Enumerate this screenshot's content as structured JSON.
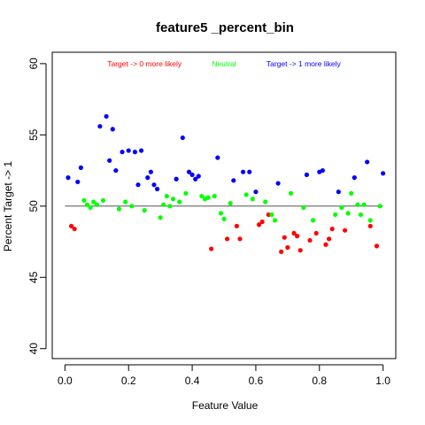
{
  "chart_data": {
    "type": "scatter",
    "title": "feature5 _percent_bin",
    "xlabel": "Feature Value",
    "ylabel": "Percent Target -> 1",
    "xlim": [
      -0.04,
      1.04
    ],
    "ylim": [
      39.3,
      60.8
    ],
    "x_ticks": [
      0,
      0.2,
      0.4,
      0.6,
      0.8,
      1
    ],
    "x_tick_labels": [
      "0.0",
      "0.2",
      "0.4",
      "0.6",
      "0.8",
      "1.0"
    ],
    "y_ticks": [
      40,
      45,
      50,
      55,
      60
    ],
    "y_tick_labels": [
      "40",
      "45",
      "50",
      "55",
      "60"
    ],
    "reference_line": 50,
    "reference_line_color": "#555555",
    "annotations": [
      {
        "text": "Target -> 0 more likely",
        "color": "#ff0000",
        "x": 0.25,
        "y": 60.0
      },
      {
        "text": "Neutral",
        "color": "#00ff00",
        "x": 0.5,
        "y": 60.0
      },
      {
        "text": "Target -> 1 more likely",
        "color": "#0000ff",
        "x": 0.75,
        "y": 60.0
      }
    ],
    "series": [
      {
        "color": "#ff0000",
        "points": [
          [
            0.02,
            48.6
          ],
          [
            0.03,
            48.4
          ],
          [
            0.46,
            47.0
          ],
          [
            0.51,
            47.7
          ],
          [
            0.54,
            48.6
          ],
          [
            0.55,
            47.7
          ],
          [
            0.61,
            48.7
          ],
          [
            0.62,
            48.9
          ],
          [
            0.64,
            49.4
          ],
          [
            0.68,
            46.8
          ],
          [
            0.69,
            47.8
          ],
          [
            0.7,
            47.1
          ],
          [
            0.72,
            48.1
          ],
          [
            0.73,
            47.9
          ],
          [
            0.74,
            46.9
          ],
          [
            0.77,
            47.6
          ],
          [
            0.79,
            48.1
          ],
          [
            0.82,
            47.3
          ],
          [
            0.83,
            47.7
          ],
          [
            0.84,
            48.4
          ],
          [
            0.88,
            48.3
          ],
          [
            0.96,
            48.6
          ],
          [
            0.98,
            47.2
          ]
        ]
      },
      {
        "color": "#00ff00",
        "points": [
          [
            0.06,
            50.4
          ],
          [
            0.07,
            50.1
          ],
          [
            0.08,
            49.9
          ],
          [
            0.09,
            50.3
          ],
          [
            0.1,
            50.1
          ],
          [
            0.12,
            50.4
          ],
          [
            0.17,
            49.8
          ],
          [
            0.19,
            50.3
          ],
          [
            0.21,
            50.0
          ],
          [
            0.25,
            49.7
          ],
          [
            0.3,
            49.2
          ],
          [
            0.31,
            50.1
          ],
          [
            0.32,
            50.7
          ],
          [
            0.33,
            50.0
          ],
          [
            0.34,
            50.5
          ],
          [
            0.36,
            50.3
          ],
          [
            0.38,
            50.9
          ],
          [
            0.43,
            50.7
          ],
          [
            0.44,
            50.5
          ],
          [
            0.45,
            50.6
          ],
          [
            0.47,
            50.7
          ],
          [
            0.49,
            49.5
          ],
          [
            0.5,
            49.1
          ],
          [
            0.52,
            50.2
          ],
          [
            0.57,
            50.8
          ],
          [
            0.59,
            50.5
          ],
          [
            0.63,
            50.3
          ],
          [
            0.65,
            49.4
          ],
          [
            0.66,
            49.0
          ],
          [
            0.71,
            50.9
          ],
          [
            0.75,
            49.9
          ],
          [
            0.78,
            49.0
          ],
          [
            0.85,
            49.4
          ],
          [
            0.87,
            49.9
          ],
          [
            0.89,
            49.5
          ],
          [
            0.9,
            50.9
          ],
          [
            0.92,
            50.1
          ],
          [
            0.93,
            49.4
          ],
          [
            0.94,
            50.1
          ],
          [
            0.96,
            49.0
          ],
          [
            0.99,
            50.0
          ]
        ]
      },
      {
        "color": "#0000ff",
        "points": [
          [
            0.01,
            52.0
          ],
          [
            0.04,
            51.7
          ],
          [
            0.05,
            52.7
          ],
          [
            0.11,
            55.6
          ],
          [
            0.13,
            56.3
          ],
          [
            0.14,
            53.2
          ],
          [
            0.15,
            55.4
          ],
          [
            0.16,
            52.5
          ],
          [
            0.18,
            53.8
          ],
          [
            0.2,
            53.9
          ],
          [
            0.22,
            53.8
          ],
          [
            0.23,
            51.5
          ],
          [
            0.24,
            53.9
          ],
          [
            0.26,
            52.0
          ],
          [
            0.27,
            52.4
          ],
          [
            0.28,
            51.5
          ],
          [
            0.29,
            51.2
          ],
          [
            0.35,
            51.9
          ],
          [
            0.37,
            54.8
          ],
          [
            0.39,
            52.4
          ],
          [
            0.4,
            52.2
          ],
          [
            0.41,
            51.9
          ],
          [
            0.42,
            52.1
          ],
          [
            0.48,
            53.4
          ],
          [
            0.53,
            51.8
          ],
          [
            0.56,
            52.4
          ],
          [
            0.58,
            52.4
          ],
          [
            0.6,
            51.0
          ],
          [
            0.67,
            51.6
          ],
          [
            0.76,
            52.2
          ],
          [
            0.8,
            52.4
          ],
          [
            0.81,
            52.5
          ],
          [
            0.86,
            51.0
          ],
          [
            0.91,
            52.0
          ],
          [
            0.95,
            53.1
          ],
          [
            1.0,
            52.3
          ]
        ]
      }
    ]
  }
}
